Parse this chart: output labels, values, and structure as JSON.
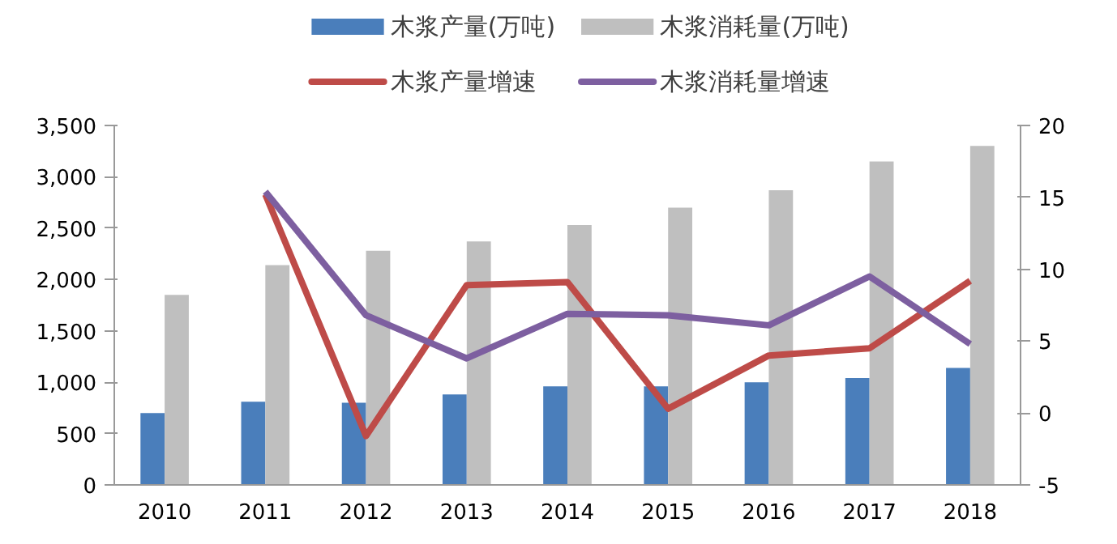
{
  "chart_data": {
    "type": "bar",
    "categories": [
      "2010",
      "2011",
      "2012",
      "2013",
      "2014",
      "2015",
      "2016",
      "2017",
      "2018"
    ],
    "series": [
      {
        "name": "木浆产量(万吨)",
        "color": "#4a7ebb",
        "values": [
          700,
          810,
          800,
          880,
          960,
          960,
          1000,
          1040,
          1140
        ]
      },
      {
        "name": "木浆消耗量(万吨)",
        "color": "#bfbfbf",
        "values": [
          1850,
          2140,
          2280,
          2370,
          2530,
          2700,
          2870,
          3150,
          3300
        ]
      },
      {
        "name": "木浆产量增速",
        "type": "line",
        "axis": "y2",
        "color": "#be4b48",
        "values": [
          null,
          15.2,
          -1.6,
          8.9,
          9.1,
          0.3,
          4.0,
          4.5,
          9.2
        ]
      },
      {
        "name": "木浆消耗量增速",
        "type": "line",
        "axis": "y2",
        "color": "#7d5fa0",
        "values": [
          null,
          15.4,
          6.8,
          3.8,
          6.9,
          6.8,
          6.1,
          9.5,
          4.8
        ]
      }
    ],
    "ylim": [
      0,
      3500
    ],
    "yticks": [
      0,
      {
        "value": 500,
        "label": "500"
      },
      {
        "value": 1000,
        "label": "1,000"
      },
      {
        "value": 1500,
        "label": "1,500"
      },
      {
        "value": 2000,
        "label": "2,000"
      },
      {
        "value": 2500,
        "label": "2,500"
      },
      {
        "value": 3000,
        "label": "3,000"
      },
      {
        "value": 3500,
        "label": "3,500"
      }
    ],
    "y2lim": [
      -5,
      20
    ],
    "y2ticks": [
      -5,
      0,
      5,
      10,
      15,
      20
    ],
    "grid": false,
    "legend": "top",
    "line_style": "solid",
    "marker": "none"
  }
}
